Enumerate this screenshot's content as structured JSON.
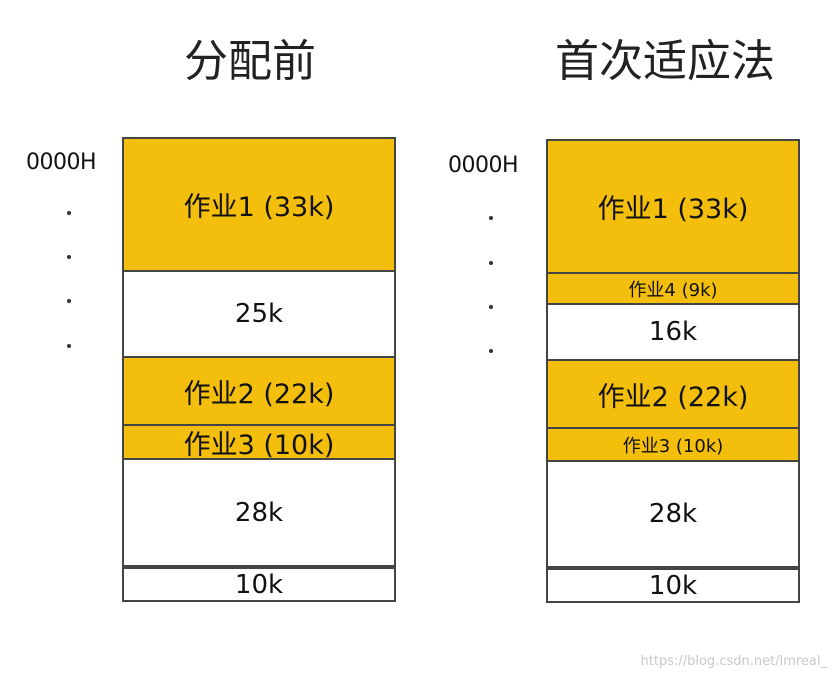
{
  "titles": {
    "before": "分配前",
    "after": "首次适应法"
  },
  "address_label": "0000H",
  "before": {
    "blocks": [
      {
        "label": "作业1 (33k)",
        "kind": "job"
      },
      {
        "label": "25k",
        "kind": "free"
      },
      {
        "label": "作业2 (22k)",
        "kind": "job"
      },
      {
        "label": "作业3 (10k)",
        "kind": "job"
      },
      {
        "label": "28k",
        "kind": "free"
      },
      {
        "label": "10k",
        "kind": "free"
      }
    ]
  },
  "after": {
    "blocks": [
      {
        "label": "作业1 (33k)",
        "kind": "job"
      },
      {
        "label": "作业4 (9k)",
        "kind": "job"
      },
      {
        "label": "16k",
        "kind": "free"
      },
      {
        "label": "作业2 (22k)",
        "kind": "job"
      },
      {
        "label": "作业3 (10k)",
        "kind": "job"
      },
      {
        "label": "28k",
        "kind": "free"
      },
      {
        "label": "10k",
        "kind": "free"
      }
    ]
  },
  "watermark": "https://blog.csdn.net/lmreal_",
  "colors": {
    "job_fill": "#f4be0c",
    "free_fill": "#ffffff",
    "border": "#444444"
  }
}
